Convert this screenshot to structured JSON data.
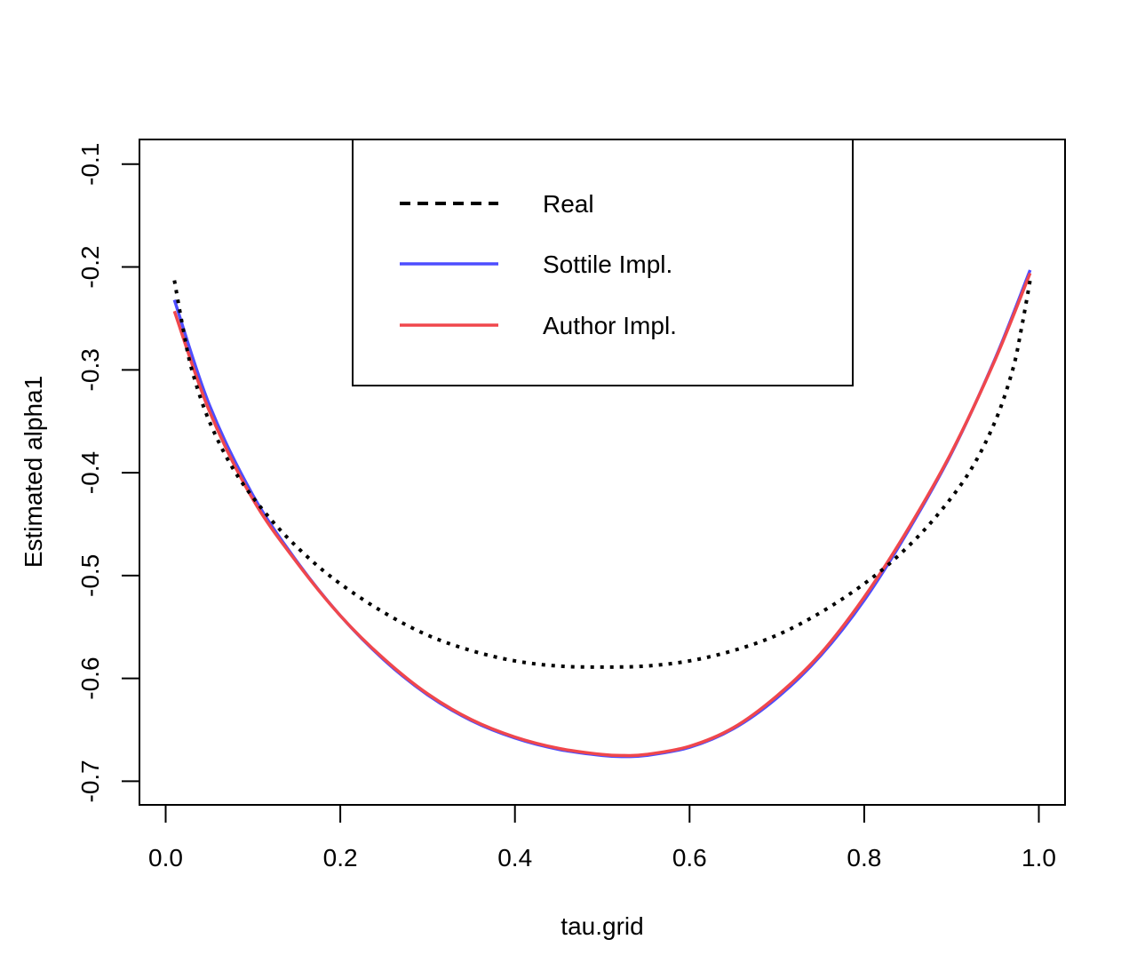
{
  "chart_data": {
    "type": "line",
    "xlabel": "tau.grid",
    "ylabel": "Estimated alpha1",
    "xlim": [
      -0.03,
      1.03
    ],
    "ylim": [
      -0.723,
      -0.076
    ],
    "x_ticks": [
      0.0,
      0.2,
      0.4,
      0.6,
      0.8,
      1.0
    ],
    "x_tick_labels": [
      "0.0",
      "0.2",
      "0.4",
      "0.6",
      "0.8",
      "1.0"
    ],
    "y_ticks": [
      -0.7,
      -0.6,
      -0.5,
      -0.4,
      -0.3,
      -0.2,
      -0.1
    ],
    "y_tick_labels": [
      "-0.7",
      "-0.6",
      "-0.5",
      "-0.4",
      "-0.3",
      "-0.2",
      "-0.1"
    ],
    "grid": false,
    "legend_position": "top-center",
    "series": [
      {
        "name": "Real",
        "color": "#000000",
        "style": "dotted",
        "x": [
          0.01,
          0.02,
          0.03,
          0.05,
          0.08,
          0.12,
          0.16,
          0.2,
          0.25,
          0.3,
          0.35,
          0.4,
          0.45,
          0.5,
          0.55,
          0.6,
          0.65,
          0.7,
          0.75,
          0.8,
          0.84,
          0.88,
          0.92,
          0.95,
          0.97,
          0.98,
          0.99
        ],
        "y": [
          -0.213,
          -0.26,
          -0.3,
          -0.35,
          -0.4,
          -0.445,
          -0.48,
          -0.508,
          -0.536,
          -0.558,
          -0.573,
          -0.583,
          -0.588,
          -0.589,
          -0.588,
          -0.583,
          -0.573,
          -0.558,
          -0.536,
          -0.508,
          -0.48,
          -0.445,
          -0.4,
          -0.35,
          -0.3,
          -0.26,
          -0.213
        ]
      },
      {
        "name": "Sottile Impl.",
        "color": "#4d4dff",
        "style": "solid",
        "x": [
          0.01,
          0.05,
          0.1,
          0.15,
          0.2,
          0.25,
          0.3,
          0.35,
          0.4,
          0.45,
          0.5,
          0.525,
          0.55,
          0.6,
          0.65,
          0.7,
          0.75,
          0.8,
          0.85,
          0.9,
          0.95,
          0.99
        ],
        "y": [
          -0.232,
          -0.334,
          -0.422,
          -0.486,
          -0.539,
          -0.582,
          -0.616,
          -0.641,
          -0.658,
          -0.669,
          -0.675,
          -0.676,
          -0.675,
          -0.667,
          -0.649,
          -0.619,
          -0.578,
          -0.524,
          -0.457,
          -0.381,
          -0.289,
          -0.203
        ]
      },
      {
        "name": "Author Impl.",
        "color": "#f0474c",
        "style": "solid",
        "x": [
          0.01,
          0.05,
          0.1,
          0.15,
          0.2,
          0.25,
          0.3,
          0.35,
          0.4,
          0.45,
          0.5,
          0.525,
          0.55,
          0.6,
          0.65,
          0.7,
          0.75,
          0.8,
          0.85,
          0.9,
          0.95,
          0.99
        ],
        "y": [
          -0.243,
          -0.34,
          -0.426,
          -0.487,
          -0.539,
          -0.581,
          -0.615,
          -0.64,
          -0.657,
          -0.668,
          -0.674,
          -0.675,
          -0.674,
          -0.666,
          -0.648,
          -0.617,
          -0.576,
          -0.521,
          -0.455,
          -0.38,
          -0.29,
          -0.206
        ]
      }
    ]
  }
}
